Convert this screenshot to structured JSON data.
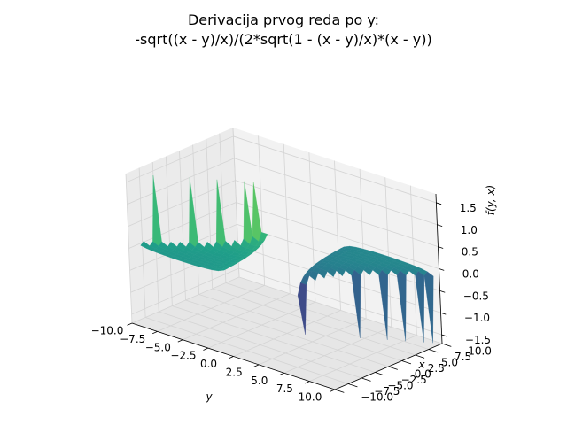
{
  "chart_data": {
    "type": "surface3d",
    "title_lines": [
      "Derivacija prvog reda po y:",
      "-sqrt((x - y)/x)/(2*sqrt(1 - (x - y)/x)*(x - y))"
    ],
    "function": "-sqrt((x - y)/x)/(2*sqrt(1 - (x - y)/x)*(x - y))",
    "xlabel": "y",
    "ylabel": "x",
    "zlabel": "f(y, x)",
    "xlim": [
      -10,
      10
    ],
    "ylim": [
      -10,
      10
    ],
    "zlim": [
      -1.7,
      1.7
    ],
    "xticks": [
      -10.0,
      -7.5,
      -5.0,
      -2.5,
      0.0,
      2.5,
      5.0,
      7.5,
      10.0
    ],
    "yticks": [
      -10.0,
      -7.5,
      -5.0,
      -2.5,
      0.0,
      2.5,
      5.0,
      7.5,
      10.0
    ],
    "zticks": [
      -1.5,
      -1.0,
      -0.5,
      0.0,
      0.5,
      1.0,
      1.5
    ],
    "xtick_labels": [
      "−10.0",
      "−7.5",
      "−5.0",
      "−2.5",
      "0.0",
      "2.5",
      "5.0",
      "7.5",
      "10.0"
    ],
    "ytick_labels": [
      "−10.0",
      "−7.5",
      "−5.0",
      "−2.5",
      "0.0",
      "2.5",
      "5.0",
      "7.5",
      "10.0"
    ],
    "ztick_labels": [
      "−1.5",
      "−1.0",
      "−0.5",
      "0.0",
      "0.5",
      "1.0",
      "1.5"
    ],
    "colormap": "viridis",
    "grid": true,
    "view": {
      "elev": 30,
      "azim": -60
    }
  },
  "colors": {
    "pane_back": "#f2f2f2",
    "pane_side": "#ebebeb",
    "pane_floor": "#e6e6e6",
    "grid": "#d4d4d4"
  }
}
